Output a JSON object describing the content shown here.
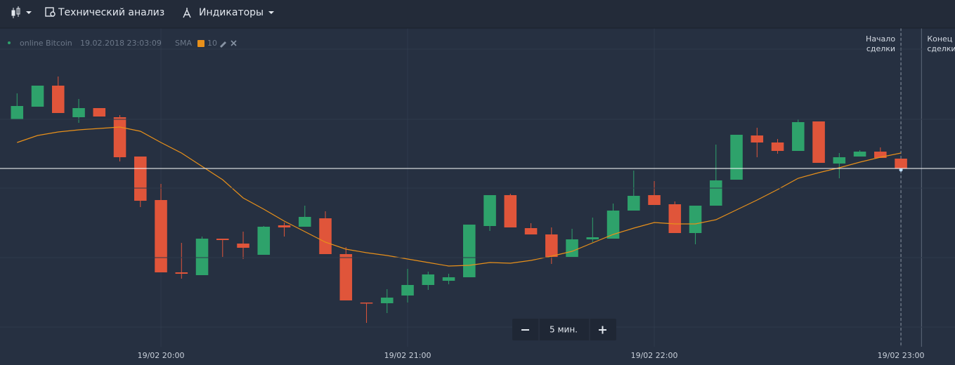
{
  "toolbar": {
    "analysis": "Технический анализ",
    "indicators": "Индикаторы"
  },
  "chart_data": {
    "type": "candlestick",
    "instrument": "online Bitcoin",
    "timestamp": "19.02.2018 23:03:09",
    "indicator": {
      "name": "SMA",
      "period": 10,
      "color": "#e8901a"
    },
    "up_color": "#2ea26b",
    "down_color": "#e0553a",
    "open": [
      350,
      368,
      398,
      353,
      366,
      353,
      297,
      235,
      132,
      128,
      180,
      173,
      157,
      199,
      197,
      209,
      158,
      89,
      88,
      99,
      114,
      120,
      125,
      198,
      242,
      195,
      186,
      154,
      179,
      180,
      220,
      242,
      229,
      188,
      227,
      264,
      327,
      317,
      305,
      347,
      287,
      297,
      304,
      294
    ],
    "high": [
      387,
      398,
      411,
      379,
      366,
      356,
      297,
      258,
      174,
      183,
      180,
      190,
      198,
      203,
      227,
      219,
      168,
      89,
      108,
      137,
      133,
      130,
      200,
      242,
      244,
      202,
      196,
      194,
      210,
      230,
      277,
      262,
      233,
      227,
      314,
      328,
      338,
      322,
      350,
      347,
      302,
      306,
      310,
      294
    ],
    "low": [
      350,
      368,
      359,
      345,
      354,
      290,
      225,
      132,
      123,
      128,
      154,
      151,
      157,
      183,
      197,
      158,
      92,
      60,
      74,
      89,
      107,
      115,
      125,
      191,
      196,
      186,
      144,
      154,
      175,
      180,
      220,
      228,
      188,
      172,
      227,
      264,
      296,
      301,
      305,
      288,
      266,
      297,
      295,
      280
    ],
    "close": [
      369,
      398,
      359,
      366,
      354,
      296,
      234,
      132,
      130,
      180,
      178,
      167,
      197,
      196,
      211,
      158,
      92,
      88,
      96,
      114,
      129,
      125,
      200,
      242,
      196,
      186,
      154,
      179,
      182,
      220,
      241,
      228,
      188,
      227,
      263,
      328,
      317,
      305,
      346,
      288,
      296,
      304,
      295,
      280
    ],
    "sma": [
      317,
      327,
      332,
      335,
      337,
      339,
      333,
      317,
      302,
      283,
      264,
      238,
      222,
      205,
      190,
      175,
      165,
      160,
      156,
      151,
      146,
      141,
      142,
      146,
      145,
      149,
      155,
      162,
      174,
      186,
      195,
      203,
      201,
      201,
      207,
      221,
      235,
      250,
      266,
      274,
      281,
      289,
      296,
      302
    ],
    "current_price": 280,
    "ylim": [
      0,
      480
    ],
    "xlim": [
      -0.83,
      45.63
    ],
    "xticks": [
      {
        "value": 7,
        "label": "19/02 20:00"
      },
      {
        "value": 19,
        "label": "19/02 21:00"
      },
      {
        "value": 31,
        "label": "19/02 22:00"
      },
      {
        "value": 43,
        "label": "19/02 23:00"
      }
    ],
    "grid": true,
    "trade_start": {
      "x": 43,
      "label": [
        "Начало",
        "сделки"
      ]
    },
    "trade_end": {
      "x": 44,
      "label": [
        "Конец",
        "сделки"
      ]
    },
    "zoom": "5 мин."
  }
}
